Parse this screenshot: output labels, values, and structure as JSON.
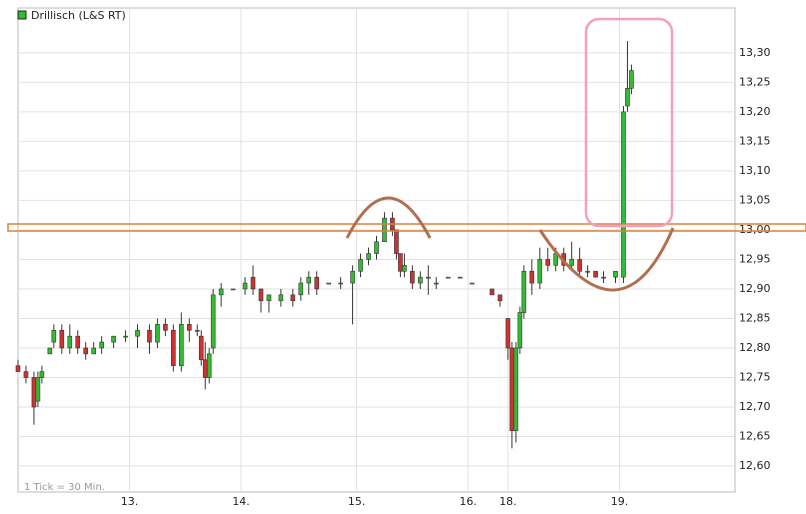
{
  "chart_data": {
    "type": "candlestick",
    "legend_title": "Drillisch (L&S RT)",
    "footnote": "1 Tick = 30 Min.",
    "grid": true,
    "xlim": [
      0,
      180
    ],
    "xticks": [
      {
        "value": 28,
        "label": "13."
      },
      {
        "value": 56,
        "label": "14."
      },
      {
        "value": 85,
        "label": "15."
      },
      {
        "value": 113,
        "label": "16."
      },
      {
        "value": 123,
        "label": "18."
      },
      {
        "value": 151,
        "label": "19."
      }
    ],
    "ylim": [
      12.556,
      13.376
    ],
    "yticks": [
      {
        "value": 12.6,
        "label": "12,60"
      },
      {
        "value": 12.65,
        "label": "12,65"
      },
      {
        "value": 12.7,
        "label": "12,70"
      },
      {
        "value": 12.75,
        "label": "12,75"
      },
      {
        "value": 12.8,
        "label": "12,80"
      },
      {
        "value": 12.85,
        "label": "12,85"
      },
      {
        "value": 12.9,
        "label": "12,90"
      },
      {
        "value": 12.95,
        "label": "12,95"
      },
      {
        "value": 13.0,
        "label": "13,00"
      },
      {
        "value": 13.05,
        "label": "13,05"
      },
      {
        "value": 13.1,
        "label": "13,10"
      },
      {
        "value": 13.15,
        "label": "13,15"
      },
      {
        "value": 13.2,
        "label": "13,20"
      },
      {
        "value": 13.25,
        "label": "13,25"
      },
      {
        "value": 13.3,
        "label": "13,30"
      }
    ],
    "series": [
      {
        "name": "Drillisch (L&S RT)",
        "color": "#33bb33",
        "up_color": "#33bb33",
        "down_color": "#cc3333",
        "x": [
          0,
          2,
          4,
          5,
          6,
          8,
          9,
          11,
          13,
          15,
          17,
          19,
          21,
          24,
          27,
          30,
          33,
          35,
          37,
          39,
          41,
          43,
          45,
          46,
          47,
          48,
          49,
          51,
          54,
          57,
          59,
          61,
          63,
          66,
          69,
          71,
          73,
          75,
          78,
          81,
          84,
          86,
          88,
          90,
          92,
          94,
          95,
          96,
          97,
          99,
          101,
          103,
          105,
          108,
          111,
          114,
          119,
          121,
          123,
          124,
          125,
          126,
          127,
          129,
          131,
          133,
          135,
          137,
          139,
          141,
          143,
          145,
          147,
          150,
          152,
          153,
          154
        ],
        "open": [
          12.77,
          12.76,
          12.75,
          12.71,
          12.75,
          12.79,
          12.81,
          12.83,
          12.8,
          12.82,
          12.8,
          12.79,
          12.8,
          12.81,
          12.82,
          12.82,
          12.83,
          12.81,
          12.84,
          12.83,
          12.77,
          12.84,
          12.83,
          12.82,
          12.78,
          12.75,
          12.8,
          12.89,
          12.9,
          12.9,
          12.92,
          12.9,
          12.88,
          12.88,
          12.89,
          12.89,
          12.91,
          12.92,
          12.91,
          12.91,
          12.91,
          12.93,
          12.95,
          12.96,
          12.98,
          13.02,
          13.0,
          12.96,
          12.93,
          12.93,
          12.91,
          12.92,
          12.91,
          12.92,
          12.92,
          12.91,
          12.9,
          12.89,
          12.85,
          12.8,
          12.66,
          12.8,
          12.86,
          12.93,
          12.91,
          12.95,
          12.94,
          12.96,
          12.94,
          12.95,
          12.93,
          12.93,
          12.92,
          12.92,
          12.92,
          13.21,
          13.24
        ],
        "high": [
          12.78,
          12.77,
          12.76,
          12.76,
          12.77,
          12.8,
          12.84,
          12.84,
          12.84,
          12.83,
          12.81,
          12.81,
          12.82,
          12.82,
          12.83,
          12.84,
          12.84,
          12.85,
          12.85,
          12.84,
          12.86,
          12.85,
          12.84,
          12.83,
          12.81,
          12.8,
          12.9,
          12.91,
          12.9,
          12.92,
          12.94,
          12.9,
          12.89,
          12.9,
          12.9,
          12.92,
          12.93,
          12.93,
          12.91,
          12.92,
          12.94,
          12.96,
          12.97,
          12.99,
          13.03,
          13.03,
          13.0,
          12.96,
          12.96,
          12.94,
          12.93,
          12.94,
          12.92,
          12.92,
          12.92,
          12.91,
          12.9,
          12.89,
          12.85,
          12.81,
          12.81,
          12.87,
          12.94,
          12.95,
          12.97,
          12.97,
          12.97,
          12.97,
          12.98,
          12.97,
          12.94,
          12.93,
          12.93,
          12.93,
          13.21,
          13.32,
          13.28
        ],
        "low": [
          12.76,
          12.74,
          12.67,
          12.7,
          12.74,
          12.79,
          12.8,
          12.79,
          12.79,
          12.79,
          12.78,
          12.79,
          12.79,
          12.8,
          12.81,
          12.8,
          12.79,
          12.8,
          12.82,
          12.76,
          12.76,
          12.81,
          12.82,
          12.77,
          12.73,
          12.74,
          12.79,
          12.87,
          12.9,
          12.89,
          12.89,
          12.86,
          12.86,
          12.87,
          12.87,
          12.88,
          12.89,
          12.89,
          12.91,
          12.9,
          12.84,
          12.92,
          12.94,
          12.95,
          12.98,
          12.99,
          12.95,
          12.92,
          12.92,
          12.9,
          12.9,
          12.89,
          12.9,
          12.92,
          12.92,
          12.91,
          12.89,
          12.87,
          12.78,
          12.63,
          12.64,
          12.79,
          12.85,
          12.89,
          12.9,
          12.93,
          12.93,
          12.93,
          12.93,
          12.92,
          12.92,
          12.92,
          12.91,
          12.91,
          12.91,
          13.2,
          13.23
        ],
        "close": [
          12.76,
          12.75,
          12.7,
          12.75,
          12.76,
          12.8,
          12.83,
          12.8,
          12.82,
          12.8,
          12.79,
          12.8,
          12.81,
          12.82,
          12.82,
          12.83,
          12.81,
          12.84,
          12.83,
          12.77,
          12.84,
          12.83,
          12.83,
          12.78,
          12.75,
          12.79,
          12.89,
          12.9,
          12.9,
          12.91,
          12.9,
          12.88,
          12.89,
          12.89,
          12.88,
          12.91,
          12.92,
          12.9,
          12.91,
          12.91,
          12.93,
          12.95,
          12.96,
          12.98,
          13.02,
          13.0,
          12.96,
          12.93,
          12.94,
          12.91,
          12.92,
          12.92,
          12.91,
          12.92,
          12.92,
          12.91,
          12.89,
          12.88,
          12.8,
          12.66,
          12.8,
          12.86,
          12.93,
          12.91,
          12.95,
          12.94,
          12.96,
          12.94,
          12.95,
          12.93,
          12.93,
          12.92,
          12.92,
          12.93,
          13.2,
          13.24,
          13.27
        ]
      }
    ]
  }
}
